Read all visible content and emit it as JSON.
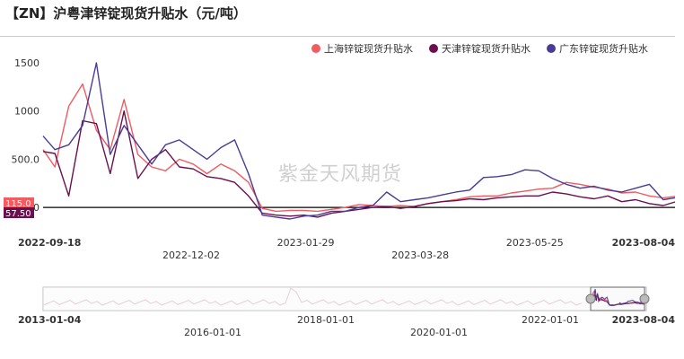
{
  "title": "【ZN】沪粤津锌锭现货升贴水（元/吨）",
  "watermark": "紫金天风期货",
  "colors": {
    "shanghai": "#f25b60",
    "tianjin": "#6b0f4e",
    "guangdong": "#4a3b96"
  },
  "legend": [
    {
      "name": "上海锌锭现货升贴水",
      "color": "#f25b60"
    },
    {
      "name": "天津锌锭现货升贴水",
      "color": "#6b0f4e"
    },
    {
      "name": "广东锌锭现货升贴水",
      "color": "#4a3b96"
    }
  ],
  "last_value_labels": [
    {
      "text": "115.0",
      "color": "#f25b60"
    },
    {
      "text": "57.50",
      "color": "#6b0f4e"
    }
  ],
  "chart_data": {
    "type": "line",
    "title": "【ZN】沪粤津锌锭现货升贴水（元/吨）",
    "ylim": [
      -250,
      1500
    ],
    "yticks": [
      "0.000",
      "500.0",
      "1000",
      "1500"
    ],
    "ytick_values": [
      0,
      500,
      1000,
      1500
    ],
    "xlim": [
      "2022-09-18",
      "2023-08-04"
    ],
    "x_tick_labels_row1": [
      "2022-09-18",
      "2023-01-29",
      "2023-05-25",
      "2023-08-04"
    ],
    "x_tick_labels_row2": [
      "2022-12-02",
      "2023-03-28"
    ],
    "grid": false,
    "legend_position": "top-right",
    "series": [
      {
        "name": "上海锌锭现货升贴水",
        "color": "#f25b60",
        "x": [
          "2022-09-18",
          "2022-09-24",
          "2022-10-01",
          "2022-10-08",
          "2022-10-15",
          "2022-10-22",
          "2022-10-29",
          "2022-11-05",
          "2022-11-12",
          "2022-11-19",
          "2022-11-26",
          "2022-12-03",
          "2022-12-10",
          "2022-12-17",
          "2022-12-24",
          "2022-12-31",
          "2023-01-07",
          "2023-01-14",
          "2023-01-21",
          "2023-01-28",
          "2023-02-04",
          "2023-02-11",
          "2023-02-18",
          "2023-02-25",
          "2023-03-04",
          "2023-03-11",
          "2023-03-18",
          "2023-03-25",
          "2023-04-01",
          "2023-04-08",
          "2023-04-15",
          "2023-04-22",
          "2023-04-29",
          "2023-05-06",
          "2023-05-13",
          "2023-05-20",
          "2023-05-27",
          "2023-06-03",
          "2023-06-10",
          "2023-06-17",
          "2023-06-24",
          "2023-07-01",
          "2023-07-08",
          "2023-07-15",
          "2023-07-22",
          "2023-07-29",
          "2023-08-04"
        ],
        "values": [
          600,
          420,
          1050,
          1280,
          800,
          600,
          1120,
          550,
          420,
          380,
          500,
          450,
          350,
          450,
          380,
          260,
          -10,
          -40,
          -30,
          -30,
          -40,
          -20,
          0,
          30,
          20,
          10,
          20,
          10,
          40,
          60,
          80,
          110,
          120,
          120,
          150,
          170,
          190,
          200,
          260,
          240,
          210,
          190,
          150,
          160,
          120,
          100,
          115
        ]
      },
      {
        "name": "天津锌锭现货升贴水",
        "color": "#6b0f4e",
        "x": [
          "2022-09-18",
          "2022-09-24",
          "2022-10-01",
          "2022-10-08",
          "2022-10-15",
          "2022-10-22",
          "2022-10-29",
          "2022-11-05",
          "2022-11-12",
          "2022-11-19",
          "2022-11-26",
          "2022-12-03",
          "2022-12-10",
          "2022-12-17",
          "2022-12-24",
          "2022-12-31",
          "2023-01-07",
          "2023-01-14",
          "2023-01-21",
          "2023-01-28",
          "2023-02-04",
          "2023-02-11",
          "2023-02-18",
          "2023-02-25",
          "2023-03-04",
          "2023-03-11",
          "2023-03-18",
          "2023-03-25",
          "2023-04-01",
          "2023-04-08",
          "2023-04-15",
          "2023-04-22",
          "2023-04-29",
          "2023-05-06",
          "2023-05-13",
          "2023-05-20",
          "2023-05-27",
          "2023-06-03",
          "2023-06-10",
          "2023-06-17",
          "2023-06-24",
          "2023-07-01",
          "2023-07-08",
          "2023-07-15",
          "2023-07-22",
          "2023-07-29",
          "2023-08-04"
        ],
        "values": [
          580,
          560,
          120,
          900,
          870,
          350,
          1000,
          300,
          500,
          600,
          420,
          400,
          320,
          300,
          260,
          120,
          -60,
          -80,
          -90,
          -80,
          -100,
          -60,
          -40,
          -20,
          0,
          10,
          -10,
          10,
          40,
          60,
          70,
          90,
          80,
          100,
          110,
          120,
          120,
          160,
          140,
          110,
          90,
          120,
          60,
          80,
          40,
          20,
          57.5
        ]
      },
      {
        "name": "广东锌锭现货升贴水",
        "color": "#4a3b96",
        "x": [
          "2022-09-18",
          "2022-09-24",
          "2022-10-01",
          "2022-10-08",
          "2022-10-15",
          "2022-10-22",
          "2022-10-29",
          "2022-11-05",
          "2022-11-12",
          "2022-11-19",
          "2022-11-26",
          "2022-12-03",
          "2022-12-10",
          "2022-12-17",
          "2022-12-24",
          "2022-12-31",
          "2023-01-07",
          "2023-01-14",
          "2023-01-21",
          "2023-01-28",
          "2023-02-04",
          "2023-02-11",
          "2023-02-18",
          "2023-02-25",
          "2023-03-04",
          "2023-03-11",
          "2023-03-18",
          "2023-03-25",
          "2023-04-01",
          "2023-04-08",
          "2023-04-15",
          "2023-04-22",
          "2023-04-29",
          "2023-05-06",
          "2023-05-13",
          "2023-05-20",
          "2023-05-27",
          "2023-06-03",
          "2023-06-10",
          "2023-06-17",
          "2023-06-24",
          "2023-07-01",
          "2023-07-08",
          "2023-07-15",
          "2023-07-22",
          "2023-07-29",
          "2023-08-04"
        ],
        "values": [
          740,
          600,
          650,
          850,
          1500,
          550,
          850,
          650,
          450,
          650,
          700,
          600,
          500,
          620,
          700,
          350,
          -80,
          -100,
          -120,
          -90,
          -80,
          -40,
          -40,
          0,
          20,
          160,
          60,
          80,
          100,
          130,
          160,
          180,
          310,
          320,
          340,
          390,
          380,
          300,
          240,
          200,
          220,
          180,
          160,
          200,
          240,
          80,
          100
        ]
      }
    ]
  },
  "navigator": {
    "start_label": "2013-01-04",
    "end_label": "2023-08-04",
    "row1_labels": [
      "2018-01-01",
      "2022-01-01"
    ],
    "row2_labels": [
      "2016-01-01",
      "2020-01-01"
    ]
  }
}
